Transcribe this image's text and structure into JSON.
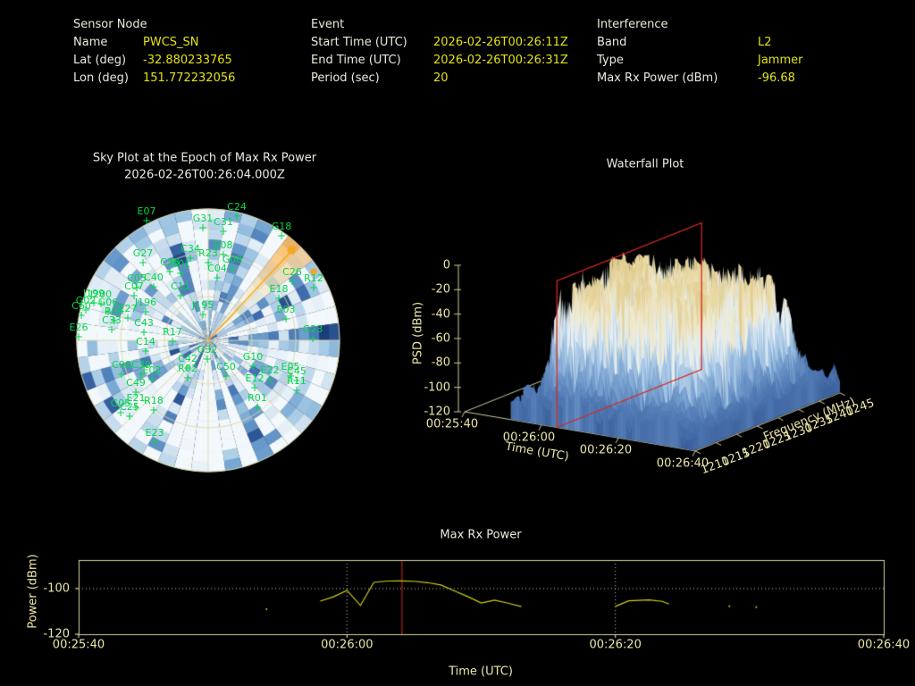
{
  "header": {
    "groups": [
      {
        "title": "Sensor Node",
        "rows": [
          {
            "label": "Name",
            "value": "PWCS_SN"
          },
          {
            "label": "Lat (deg)",
            "value": "-32.880233765"
          },
          {
            "label": "Lon (deg)",
            "value": "151.772232056"
          }
        ]
      },
      {
        "title": "Event",
        "rows": [
          {
            "label": "Start Time (UTC)",
            "value": "2026-02-26T00:26:11Z"
          },
          {
            "label": "End Time (UTC)",
            "value": "2026-02-26T00:26:31Z"
          },
          {
            "label": "Period (sec)",
            "value": "20"
          }
        ]
      },
      {
        "title": "Interference",
        "rows": [
          {
            "label": "Band",
            "value": "L2"
          },
          {
            "label": "Type",
            "value": "Jammer"
          },
          {
            "label": "Max Rx Power (dBm)",
            "value": "-96.68"
          }
        ]
      }
    ]
  },
  "colors": {
    "background": "#000000",
    "label_text": "#eaeadc",
    "value_text": "#e2e216",
    "tick_text": "#ece5a8",
    "axis_line": "#d8d3a0",
    "satellite_green": "#00d848",
    "interference_orange": "#f5a623",
    "epoch_red": "#d8281e",
    "series_yellow": "#cfcf1b",
    "grid_dotted": "#cccccc"
  },
  "chart_data": [
    {
      "id": "sky_plot",
      "type": "polar_heatmap",
      "title": "Sky Plot at the Epoch of Max Rx Power",
      "subtitle": "2026-02-26T00:26:04.000Z",
      "colormap": "Blues",
      "center": [
        158,
        158
      ],
      "radius": 147,
      "elevation_rings": 3,
      "interference_beam": {
        "azimuth_deg": 43,
        "color": "#f5a623",
        "dots": [
          {
            "x": 251,
            "y": 57,
            "r": 4.5
          },
          {
            "x": 276,
            "y": 81,
            "r": 3.5
          }
        ]
      },
      "satellites": [
        {
          "id": "E07",
          "x": 89,
          "y": 20
        },
        {
          "id": "C24",
          "x": 190,
          "y": 15
        },
        {
          "id": "G31",
          "x": 152,
          "y": 28
        },
        {
          "id": "C31",
          "x": 175,
          "y": 32
        },
        {
          "id": "G18",
          "x": 240,
          "y": 37
        },
        {
          "id": "G27",
          "x": 85,
          "y": 67
        },
        {
          "id": "C34",
          "x": 138,
          "y": 62
        },
        {
          "id": "E08",
          "x": 175,
          "y": 58
        },
        {
          "id": "R23",
          "x": 158,
          "y": 67
        },
        {
          "id": "G08",
          "x": 185,
          "y": 74
        },
        {
          "id": "C04",
          "x": 168,
          "y": 84
        },
        {
          "id": "C38",
          "x": 115,
          "y": 77
        },
        {
          "id": "G01",
          "x": 127,
          "y": 79
        },
        {
          "id": "C05",
          "x": 78,
          "y": 95
        },
        {
          "id": "C40",
          "x": 97,
          "y": 94
        },
        {
          "id": "C07",
          "x": 75,
          "y": 104
        },
        {
          "id": "C11",
          "x": 127,
          "y": 104
        },
        {
          "id": "C26",
          "x": 252,
          "y": 88
        },
        {
          "id": "R12",
          "x": 276,
          "y": 95
        },
        {
          "id": "E18",
          "x": 237,
          "y": 107
        },
        {
          "id": "E03",
          "x": 245,
          "y": 130
        },
        {
          "id": "G23",
          "x": 275,
          "y": 152
        },
        {
          "id": "J195",
          "x": 152,
          "y": 125
        },
        {
          "id": "J199",
          "x": 30,
          "y": 112
        },
        {
          "id": "J200",
          "x": 38,
          "y": 113
        },
        {
          "id": "G02",
          "x": 21,
          "y": 120
        },
        {
          "id": "C60",
          "x": 16,
          "y": 126
        },
        {
          "id": "G06",
          "x": 46,
          "y": 122
        },
        {
          "id": "J196",
          "x": 88,
          "y": 122
        },
        {
          "id": "R05",
          "x": 53,
          "y": 132
        },
        {
          "id": "E27",
          "x": 68,
          "y": 129
        },
        {
          "id": "C33",
          "x": 50,
          "y": 142
        },
        {
          "id": "C43",
          "x": 86,
          "y": 145
        },
        {
          "id": "E26",
          "x": 13,
          "y": 150
        },
        {
          "id": "R17",
          "x": 118,
          "y": 155
        },
        {
          "id": "C14",
          "x": 88,
          "y": 166
        },
        {
          "id": "C08",
          "x": 61,
          "y": 192
        },
        {
          "id": "C39",
          "x": 83,
          "y": 192
        },
        {
          "id": "E02",
          "x": 95,
          "y": 198
        },
        {
          "id": "C42",
          "x": 135,
          "y": 185
        },
        {
          "id": "R02",
          "x": 135,
          "y": 196
        },
        {
          "id": "C49",
          "x": 77,
          "y": 212
        },
        {
          "id": "E21",
          "x": 77,
          "y": 229
        },
        {
          "id": "R18",
          "x": 97,
          "y": 232
        },
        {
          "id": "G05",
          "x": 60,
          "y": 235
        },
        {
          "id": "C25",
          "x": 70,
          "y": 239
        },
        {
          "id": "E23",
          "x": 98,
          "y": 268
        },
        {
          "id": "G32",
          "x": 157,
          "y": 175
        },
        {
          "id": "C50",
          "x": 178,
          "y": 194
        },
        {
          "id": "G10",
          "x": 208,
          "y": 183
        },
        {
          "id": "E22",
          "x": 227,
          "y": 198
        },
        {
          "id": "E05",
          "x": 250,
          "y": 194
        },
        {
          "id": "C45",
          "x": 257,
          "y": 199
        },
        {
          "id": "R11",
          "x": 257,
          "y": 210
        },
        {
          "id": "E12",
          "x": 210,
          "y": 207
        },
        {
          "id": "R01",
          "x": 213,
          "y": 229
        }
      ]
    },
    {
      "id": "waterfall",
      "type": "surface",
      "title": "Waterfall Plot",
      "xlabel": "Time (UTC)",
      "ylabel": "Frequency (MHz)",
      "zlabel": "PSD (dBm)",
      "time_ticks": [
        {
          "t": 0,
          "label": "00:25:40"
        },
        {
          "t": 20,
          "label": "00:26:00"
        },
        {
          "t": 40,
          "label": "00:26:20"
        },
        {
          "t": 60,
          "label": "00:26:40"
        }
      ],
      "freq_ticks": [
        1210,
        1215,
        1220,
        1225,
        1230,
        1235,
        1240,
        1245
      ],
      "psd_ticks": [
        0,
        -20,
        -40,
        -60,
        -80,
        -100,
        -120
      ],
      "psd_range": [
        -120,
        0
      ],
      "freq_range_mhz": [
        1210,
        1245
      ],
      "time_range": [
        "00:25:40",
        "00:26:40"
      ],
      "noise_floor_dbm": -106,
      "signal": {
        "time_s": [
          12,
          59
        ],
        "freq_mhz": [
          1212,
          1242
        ],
        "peak_psd_dbm": -15
      },
      "epoch_plane": {
        "time_s": 24,
        "label": "00:26:04",
        "color": "#d8281e"
      }
    },
    {
      "id": "max_rx_power",
      "type": "line",
      "title": "Max Rx Power",
      "xlabel": "Time (UTC)",
      "ylabel": "Power (dBm)",
      "x_ticks": [
        {
          "t": 0,
          "label": "00:25:40"
        },
        {
          "t": 20,
          "label": "00:26:00"
        },
        {
          "t": 40,
          "label": "00:26:20"
        },
        {
          "t": 60,
          "label": "00:26:40"
        }
      ],
      "y_ticks": [
        -100,
        -120
      ],
      "ylim": [
        -120,
        -87.5
      ],
      "xlim_s": [
        0,
        60
      ],
      "gridlines": {
        "h": [
          -100
        ],
        "v": [
          20,
          40
        ]
      },
      "epoch_line_s": 24.1,
      "series_color": "#cfcf1b",
      "segments": [
        [
          [
            18,
            -105.5
          ],
          [
            19,
            -103.6
          ],
          [
            20,
            -100.8
          ],
          [
            21,
            -107.4
          ],
          [
            22,
            -97.3
          ],
          [
            23,
            -96.7
          ],
          [
            24,
            -96.68
          ],
          [
            25,
            -96.8
          ],
          [
            26,
            -97.4
          ],
          [
            27,
            -98.4
          ],
          [
            28,
            -101.0
          ],
          [
            29,
            -103.5
          ],
          [
            30,
            -106.3
          ],
          [
            31,
            -105.1
          ],
          [
            32,
            -106.4
          ],
          [
            33,
            -107.9
          ]
        ],
        [
          [
            40,
            -107.8
          ],
          [
            41,
            -105.4
          ],
          [
            42.5,
            -105.0
          ],
          [
            43.5,
            -105.6
          ],
          [
            44,
            -106.8
          ]
        ]
      ],
      "isolated_points": [
        [
          14,
          -109.0
        ],
        [
          48.5,
          -107.8
        ],
        [
          50.5,
          -108.2
        ]
      ]
    }
  ]
}
